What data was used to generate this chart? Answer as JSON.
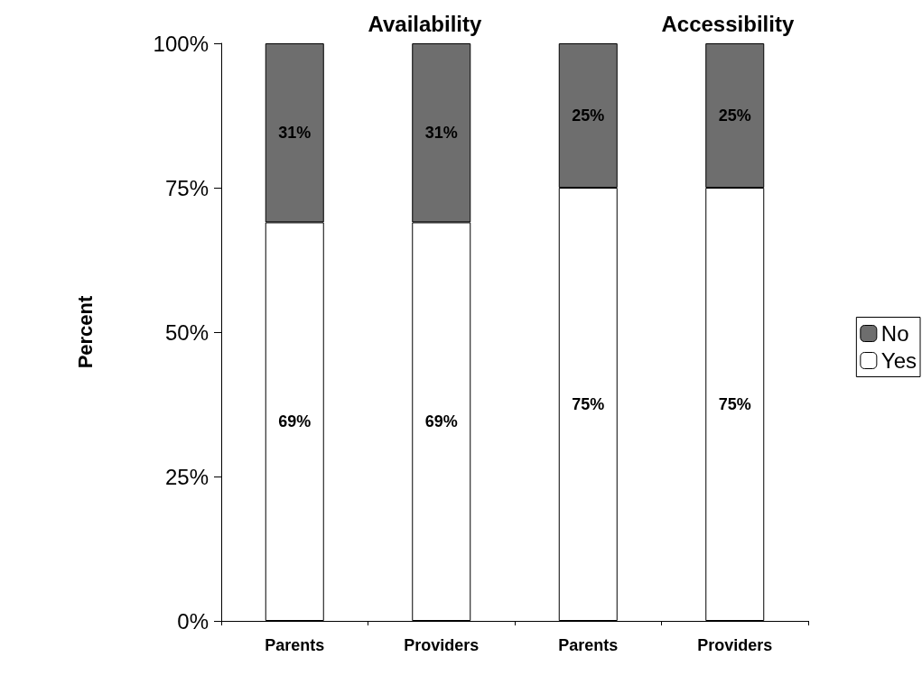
{
  "chart_data": {
    "type": "bar",
    "stacked": true,
    "ylabel": "Percent",
    "categories": [
      "Parents",
      "Providers",
      "Parents",
      "Providers"
    ],
    "series": [
      {
        "name": "Yes",
        "color": "#ffffff",
        "values": [
          69,
          69,
          75,
          75
        ],
        "value_labels": [
          "69%",
          "69%",
          "75%",
          "75%"
        ]
      },
      {
        "name": "No",
        "color": "#6e6e6e",
        "values": [
          31,
          31,
          25,
          25
        ],
        "value_labels": [
          "31%",
          "31%",
          "25%",
          "25%"
        ]
      }
    ],
    "ylim": [
      0,
      100
    ],
    "yticks": [
      {
        "value": 0,
        "label": "0%"
      },
      {
        "value": 25,
        "label": "25%"
      },
      {
        "value": 50,
        "label": "50%"
      },
      {
        "value": 75,
        "label": "75%"
      },
      {
        "value": 100,
        "label": "100%"
      }
    ],
    "annotations": [
      "Availability",
      "Accessibility"
    ],
    "grid": false,
    "legend": "right"
  }
}
